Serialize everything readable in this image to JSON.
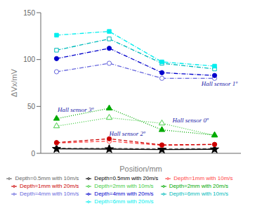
{
  "chart_data": {
    "type": "line",
    "xlabel": "Position/mm",
    "ylabel": "ΔVx/mV",
    "x": [
      0,
      1,
      2,
      3
    ],
    "xlim": [
      -0.3,
      3.5
    ],
    "xticks": [],
    "ylim": [
      0,
      150
    ],
    "yticks": [
      0,
      50,
      100,
      150
    ],
    "tick_labels": "y",
    "grid": false,
    "legend": "bottom",
    "series": [
      {
        "name": "Depth=0.5mm with 10m/s",
        "color": "#666666",
        "values": [
          5.5,
          5.2,
          4.8,
          5.0
        ],
        "marker": "diamond_open",
        "line_style": "dashed"
      },
      {
        "name": "Depth=0.5mm with 20m/s",
        "color": "#000000",
        "values": [
          4.8,
          4.5,
          4.0,
          4.3
        ],
        "marker": "star",
        "line_style": "solid"
      },
      {
        "name": "Depth=1mm with 10m/s",
        "color": "#ff4444",
        "values": [
          11.0,
          13.0,
          8.5,
          9.5
        ],
        "marker": "circle_open",
        "line_style": "dashed"
      },
      {
        "name": "Depth=1mm with 20m/s",
        "color": "#cc0000",
        "values": [
          11.5,
          15.5,
          9.0,
          9.5
        ],
        "marker": "circle",
        "line_style": "dashed"
      },
      {
        "name": "Depth=2mm with 10m/s",
        "color": "#44cc44",
        "values": [
          29.0,
          38.0,
          32.0,
          19.0
        ],
        "marker": "triangle_open",
        "line_style": "dotted"
      },
      {
        "name": "Depth=2mm with 20m/s",
        "color": "#00aa00",
        "values": [
          37.0,
          48.0,
          25.0,
          19.5
        ],
        "marker": "triangle",
        "line_style": "dotted"
      },
      {
        "name": "Depth=4mm with 10m/s",
        "color": "#6666dd",
        "values": [
          87.0,
          96.0,
          80.0,
          80.0
        ],
        "marker": "circle_open",
        "line_style": "dashdot"
      },
      {
        "name": "Depth=4mm with 20m/s",
        "color": "#0000cc",
        "values": [
          101.0,
          112.0,
          86.0,
          83.0
        ],
        "marker": "circle",
        "line_style": "dashdot"
      },
      {
        "name": "Depth=6mm with 10m/s",
        "color": "#00bbbb",
        "values": [
          110.0,
          122.0,
          96.0,
          90.0
        ],
        "marker": "square_open",
        "line_style": "dashdot"
      },
      {
        "name": "Depth=6mm with 20m/s",
        "color": "#00eeee",
        "values": [
          126.0,
          130.0,
          97.5,
          93.0
        ],
        "marker": "square",
        "line_style": "dashdot"
      }
    ],
    "annotations": [
      {
        "text": "Hall sensor 1º",
        "x": 2.75,
        "y": 72,
        "color": "#2222aa"
      },
      {
        "text": "Hall sensor 3º",
        "x": 0.02,
        "y": 44,
        "color": "#2222aa"
      },
      {
        "text": "Hall sensor 0º",
        "x": 2.2,
        "y": 33,
        "color": "#2222aa"
      },
      {
        "text": "Hall sensor 2º",
        "x": 1.0,
        "y": 19,
        "color": "#2222aa"
      }
    ]
  }
}
